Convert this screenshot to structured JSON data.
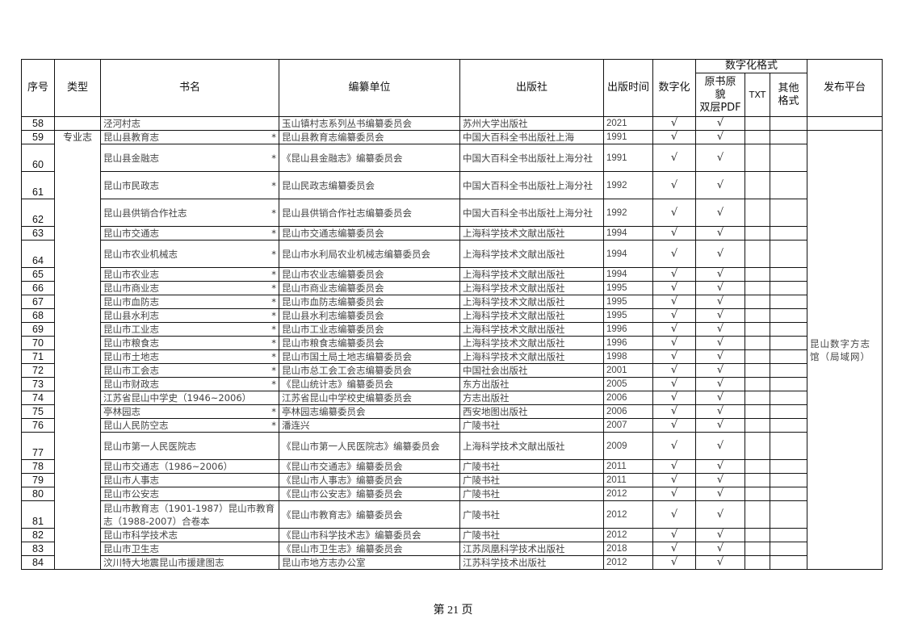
{
  "header": {
    "no": "序号",
    "type": "类型",
    "name": "书名",
    "unit": "编纂单位",
    "publisher": "出版社",
    "year": "出版时间",
    "digital": "数字化",
    "format_group": "数字化格式",
    "pdf": "原书原\n貌\n双层PDF",
    "txt": "TXT",
    "other": "其他\n格式",
    "platform": "发布平台"
  },
  "type_label": "专业志",
  "platform_label": "昆山数字方志馆（局域网）",
  "check": "√",
  "rows": [
    {
      "no": "58",
      "name": "泾河村志",
      "star": "",
      "unit": "玉山镇村志系列丛书编纂委员会",
      "publisher": "苏州大学出版社",
      "year": "2021"
    },
    {
      "no": "59",
      "name": "昆山县教育志",
      "star": "*",
      "unit": "昆山县教育志编纂委员会",
      "publisher": "中国大百科全书出版社上海",
      "year": "1991"
    },
    {
      "no": "60",
      "name": "昆山县金融志",
      "star": "*",
      "unit": "《昆山县金融志》编纂委员会",
      "publisher": "中国大百科全书出版社上海分社",
      "year": "1991",
      "tall": true
    },
    {
      "no": "61",
      "name": "昆山市民政志",
      "star": "*",
      "unit": "昆山民政志编纂委员会",
      "publisher": "中国大百科全书出版社上海分社",
      "year": "1992",
      "tall": true
    },
    {
      "no": "62",
      "name": "昆山县供销合作社志",
      "star": "*",
      "unit": "昆山县供销合作社志编纂委员会",
      "publisher": "中国大百科全书出版社上海分社",
      "year": "1992",
      "tall": true
    },
    {
      "no": "63",
      "name": "昆山市交通志",
      "star": "*",
      "unit": "昆山市交通志编纂委员会",
      "publisher": "上海科学技术文献出版社",
      "year": "1994"
    },
    {
      "no": "64",
      "name": "昆山市农业机械志",
      "star": "*",
      "unit": "昆山市水利局农业机械志编纂委员会",
      "publisher": "上海科学技术文献出版社",
      "year": "1994",
      "tall": true
    },
    {
      "no": "65",
      "name": "昆山市农业志",
      "star": "*",
      "unit": "昆山市农业志编纂委员会",
      "publisher": "上海科学技术文献出版社",
      "year": "1994"
    },
    {
      "no": "66",
      "name": "昆山市商业志",
      "star": "*",
      "unit": "昆山市商业志编纂委员会",
      "publisher": "上海科学技术文献出版社",
      "year": "1995"
    },
    {
      "no": "67",
      "name": "昆山市血防志",
      "star": "*",
      "unit": "昆山市血防志编纂委员会",
      "publisher": "上海科学技术文献出版社",
      "year": "1995"
    },
    {
      "no": "68",
      "name": "昆山县水利志",
      "star": "*",
      "unit": "昆山县水利志编纂委员会",
      "publisher": "上海科学技术文献出版社",
      "year": "1995"
    },
    {
      "no": "69",
      "name": "昆山市工业志",
      "star": "*",
      "unit": "昆山市工业志编纂委员会",
      "publisher": "上海科学技术文献出版社",
      "year": "1996"
    },
    {
      "no": "70",
      "name": "昆山市粮食志",
      "star": "*",
      "unit": "昆山市粮食志编纂委员会",
      "publisher": "上海科学技术文献出版社",
      "year": "1996"
    },
    {
      "no": "71",
      "name": "昆山市土地志",
      "star": "*",
      "unit": "昆山市国土局土地志编纂委员会",
      "publisher": "上海科学技术文献出版社",
      "year": "1998"
    },
    {
      "no": "72",
      "name": "昆山市工会志",
      "star": "*",
      "unit": "昆山市总工会工会志编纂委员会",
      "publisher": "中国社会出版社",
      "year": "2001"
    },
    {
      "no": "73",
      "name": "昆山市财政志",
      "star": "*",
      "unit": "《昆山统计志》编纂委员会",
      "publisher": "东方出版社",
      "year": "2005"
    },
    {
      "no": "74",
      "name": "江苏省昆山中学史（1946~2006）",
      "star": "",
      "unit": "江苏省昆山中学校史编纂委员会",
      "publisher": "方志出版社",
      "year": "2006"
    },
    {
      "no": "75",
      "name": "亭林园志",
      "star": "*",
      "unit": "亭林园志编纂委员会",
      "publisher": "西安地图出版社",
      "year": "2006"
    },
    {
      "no": "76",
      "name": "昆山人民防空志",
      "star": "*",
      "unit": "潘连兴",
      "publisher": "广陵书社",
      "year": "2007"
    },
    {
      "no": "77",
      "name": "昆山市第一人民医院志",
      "star": "",
      "unit": "《昆山市第一人民医院志》编纂委员会",
      "publisher": "上海科学技术文献出版社",
      "year": "2009",
      "tall": true
    },
    {
      "no": "78",
      "name": "昆山市交通志（1986~2006）",
      "star": "",
      "unit": "《昆山市交通志》编纂委员会",
      "publisher": "广陵书社",
      "year": "2011"
    },
    {
      "no": "79",
      "name": "昆山市人事志",
      "star": "",
      "unit": "《昆山市人事志》编纂委员会",
      "publisher": "广陵书社",
      "year": "2011"
    },
    {
      "no": "80",
      "name": "昆山市公安志",
      "star": "",
      "unit": "《昆山市公安志》编纂委员会",
      "publisher": "广陵书社",
      "year": "2012"
    },
    {
      "no": "81",
      "name": "昆山市教育志（1901-1987）昆山市教育志（1988-2007）合卷本",
      "star": "",
      "unit": "《昆山市教育志》编纂委员会",
      "publisher": "广陵书社",
      "year": "2012",
      "tall": true
    },
    {
      "no": "82",
      "name": "昆山市科学技术志",
      "star": "",
      "unit": "《昆山市科学技术志》编纂委员会",
      "publisher": "广陵书社",
      "year": "2012"
    },
    {
      "no": "83",
      "name": "昆山市卫生志",
      "star": "",
      "unit": "《昆山市卫生志》编纂委员会",
      "publisher": "江苏凤凰科学技术出版社",
      "year": "2018"
    },
    {
      "no": "84",
      "name": "汶川特大地震昆山市援建图志",
      "star": "",
      "unit": "昆山市地方志办公室",
      "publisher": "江苏科学技术出版社",
      "year": "2012"
    }
  ],
  "footer": {
    "page": "第 21 页"
  }
}
